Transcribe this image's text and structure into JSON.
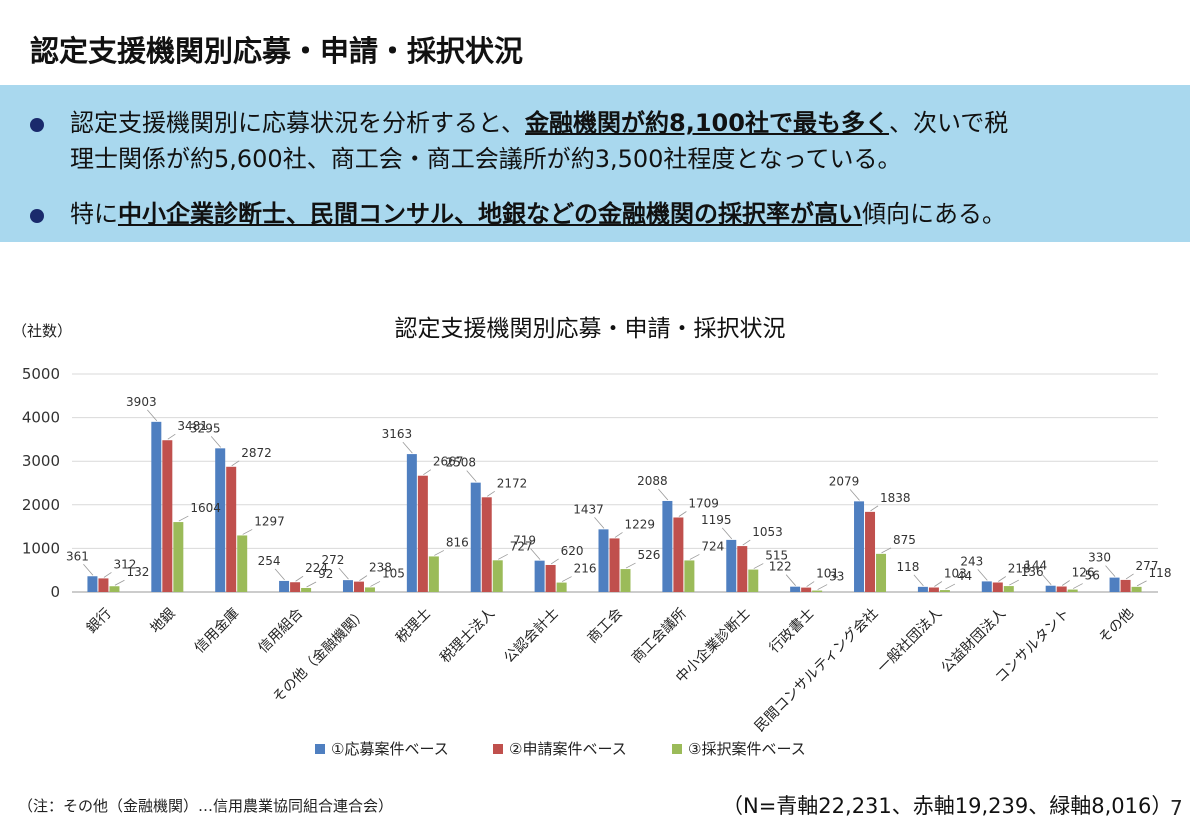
{
  "page": {
    "title": "認定支援機関別応募・申請・採択状況",
    "bullets": [
      {
        "parts": [
          {
            "text": "認定支援機関別に応募状況を分析すると、",
            "em": false
          },
          {
            "text": "金融機関が約8,100社で最も多く",
            "em": true
          },
          {
            "text": "、次いで税",
            "em": false
          }
        ],
        "line2": "理士関係が約5,600社、商工会・商工会議所が約3,500社程度となっている。"
      },
      {
        "parts": [
          {
            "text": "特に",
            "em": false
          },
          {
            "text": "中小企業診断士、民間コンサル、地銀などの金融機関の採択率が高い",
            "em": true
          },
          {
            "text": "傾向にある。",
            "em": false
          }
        ]
      }
    ],
    "footnote": "（注：その他（金融機関）…信用農業協同組合連合会）",
    "total_note": "（N=青軸22,231、赤軸19,239、緑軸8,016）",
    "page_number": "7"
  },
  "colors": {
    "series1": "#4f7fc0",
    "series2": "#c0504d",
    "series3": "#9bbb59",
    "highlight_box": "#a9d8ee",
    "bullet_dot": "#1a2a6c"
  },
  "chart_data": {
    "type": "bar",
    "title": "認定支援機関別応募・申請・採択状況",
    "unit_label": "（社数）",
    "ylim": [
      0,
      5000
    ],
    "yticks": [
      0,
      1000,
      2000,
      3000,
      4000,
      5000
    ],
    "grid": true,
    "legend_position": "bottom",
    "categories": [
      "銀行",
      "地銀",
      "信用金庫",
      "信用組合",
      "その他（金融機関）",
      "税理士",
      "税理士法人",
      "公認会計士",
      "商工会",
      "商工会議所",
      "中小企業診断士",
      "行政書士",
      "民間コンサルティング会社",
      "一般社団法人",
      "公益財団法人",
      "コンサルタント",
      "その他"
    ],
    "series": [
      {
        "name": "①応募案件ベース",
        "values": [
          361,
          3903,
          3295,
          254,
          272,
          3163,
          2508,
          719,
          1437,
          2088,
          1195,
          122,
          2079,
          118,
          243,
          144,
          330
        ]
      },
      {
        "name": "②申請案件ベース",
        "values": [
          312,
          3481,
          2872,
          224,
          238,
          2667,
          2172,
          620,
          1229,
          1709,
          1053,
          101,
          1838,
          103,
          218,
          126,
          277
        ]
      },
      {
        "name": "③採択案件ベース",
        "values": [
          132,
          1604,
          1297,
          92,
          105,
          816,
          727,
          216,
          526,
          724,
          515,
          33,
          875,
          44,
          136,
          56,
          118
        ]
      }
    ]
  }
}
